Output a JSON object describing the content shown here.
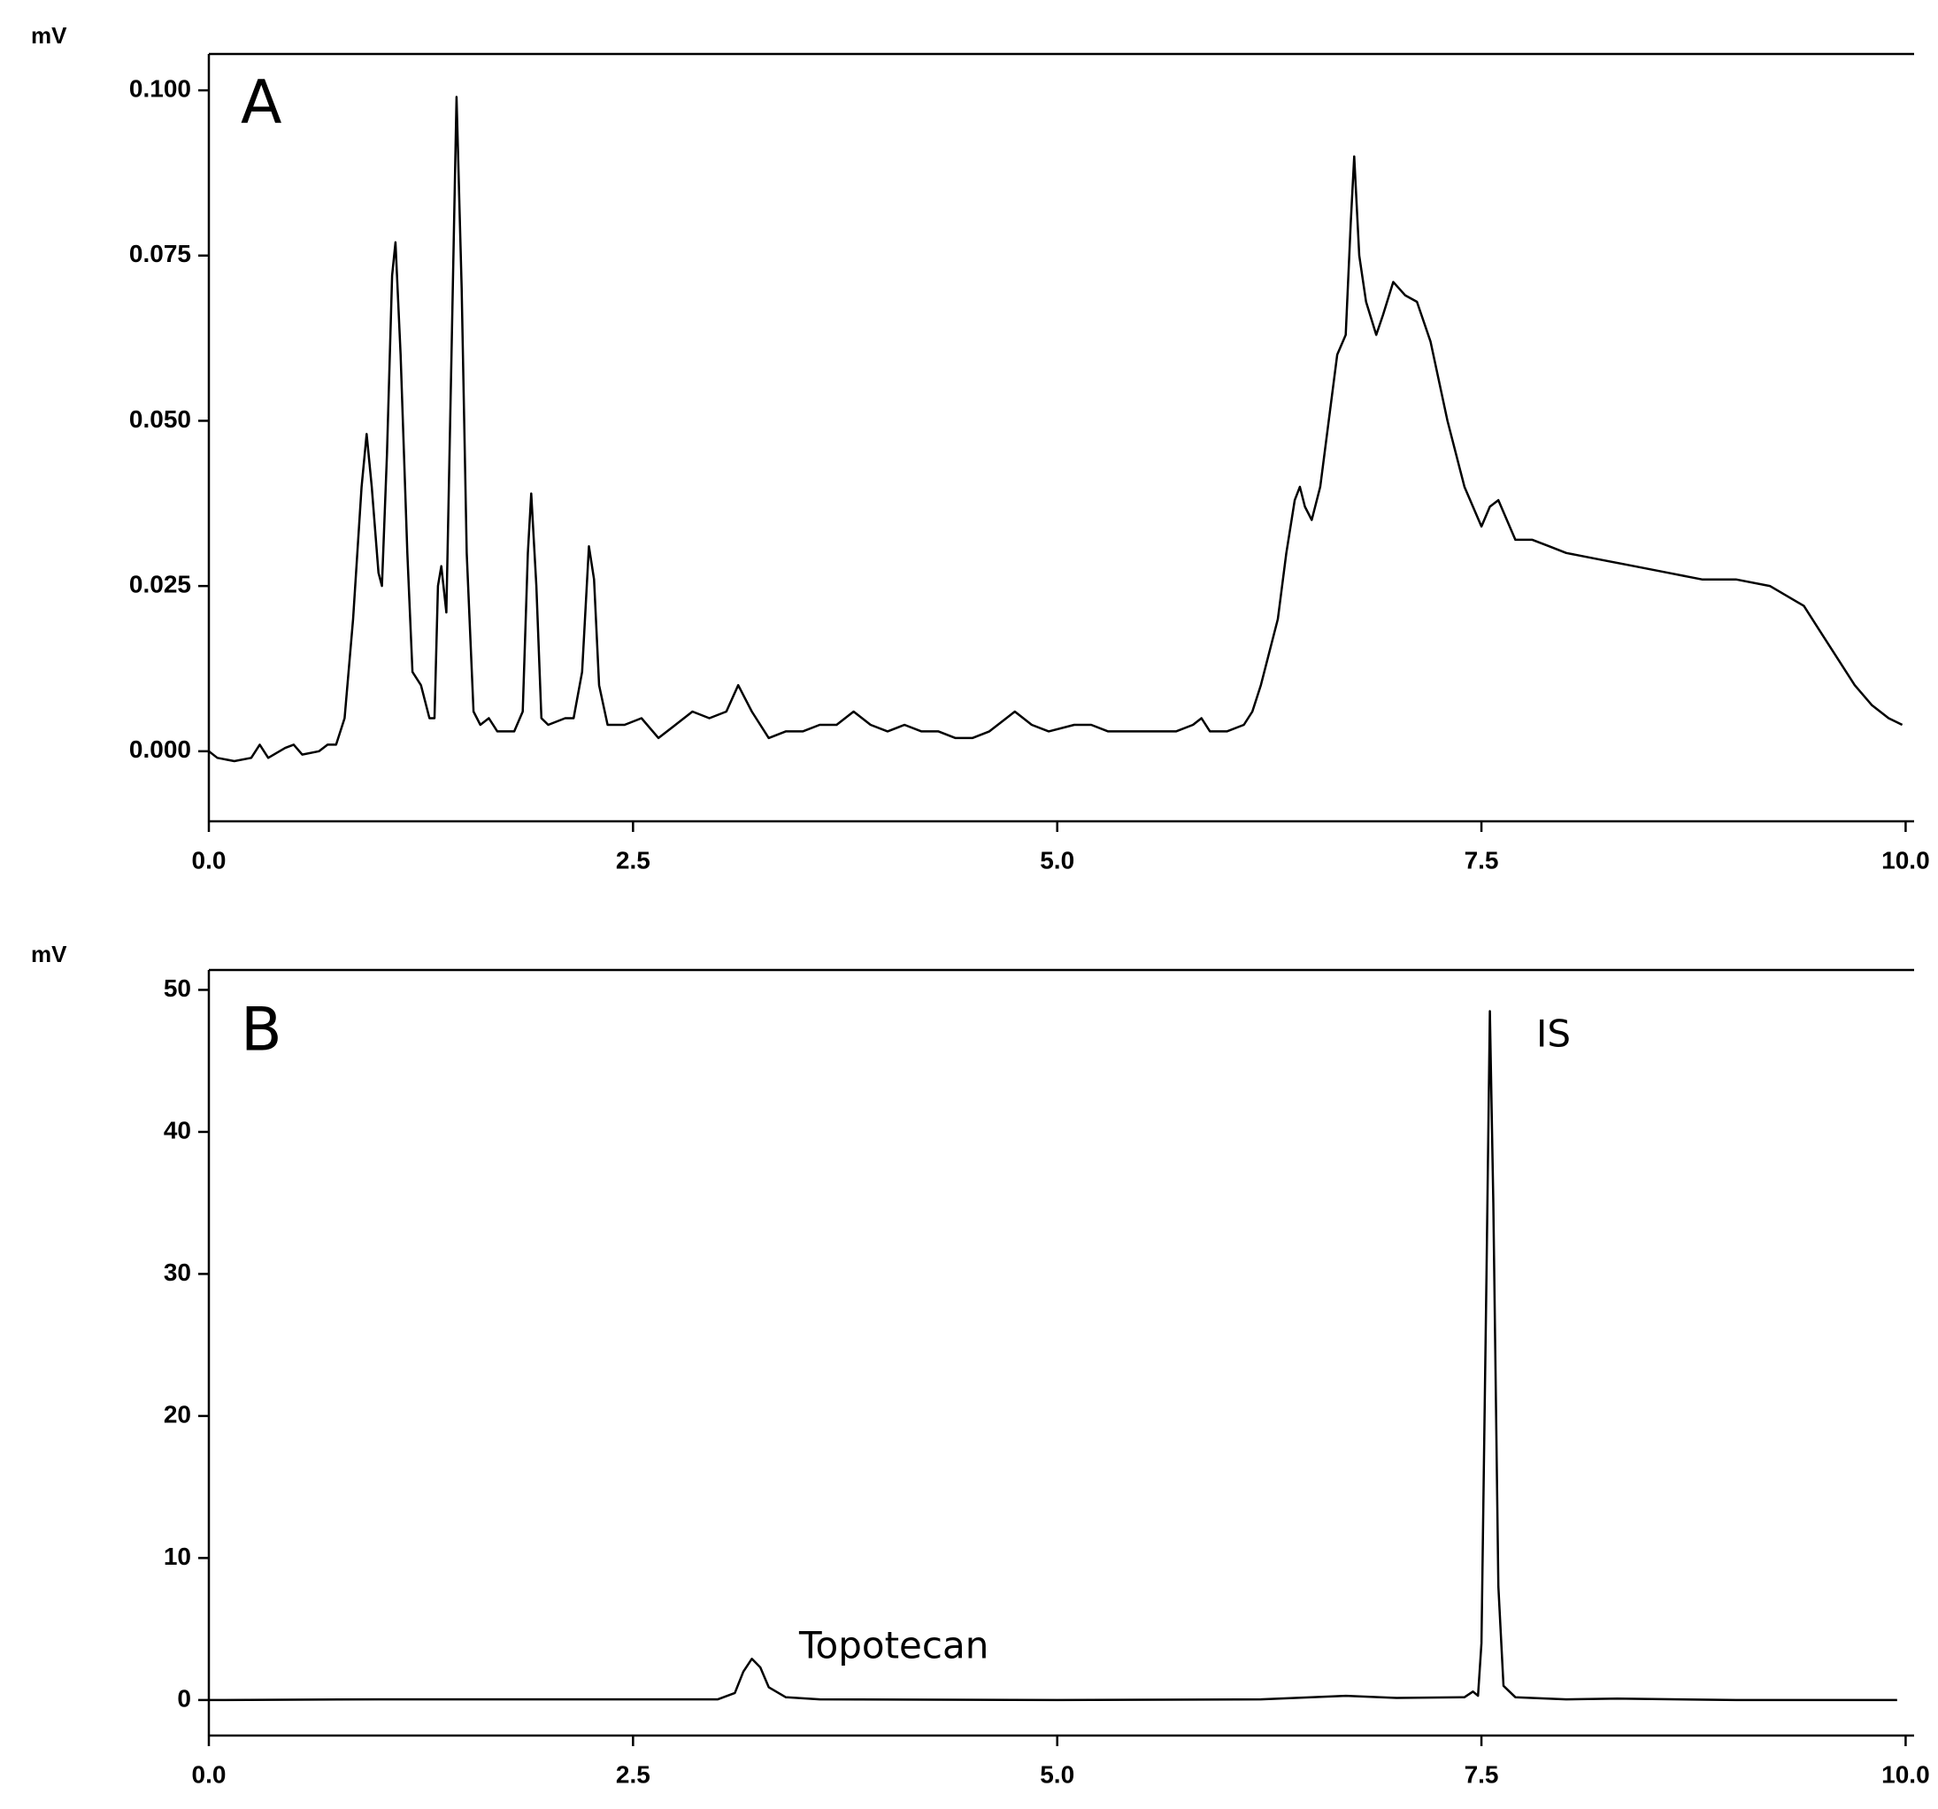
{
  "chart_data": [
    {
      "type": "line",
      "y_label": "mV",
      "panel_label": "A",
      "color": "#000000",
      "xlim": [
        0,
        10.05
      ],
      "ylim": [
        -0.0106,
        0.1055
      ],
      "xticks": [
        {
          "value": 0,
          "label": "0.0"
        },
        {
          "value": 2.5,
          "label": "2.5"
        },
        {
          "value": 5,
          "label": "5.0"
        },
        {
          "value": 7.5,
          "label": "7.5"
        },
        {
          "value": 10,
          "label": "10.0"
        }
      ],
      "yticks": [
        {
          "value": 0,
          "label": "0.000"
        },
        {
          "value": 0.025,
          "label": "0.025"
        },
        {
          "value": 0.05,
          "label": "0.050"
        },
        {
          "value": 0.075,
          "label": "0.075"
        },
        {
          "value": 0.1,
          "label": "0.100"
        }
      ],
      "x": [
        0.0,
        0.05,
        0.15,
        0.25,
        0.3,
        0.35,
        0.45,
        0.5,
        0.55,
        0.65,
        0.7,
        0.75,
        0.8,
        0.85,
        0.9,
        0.93,
        0.96,
        1.0,
        1.02,
        1.05,
        1.08,
        1.1,
        1.13,
        1.17,
        1.2,
        1.25,
        1.3,
        1.33,
        1.35,
        1.37,
        1.4,
        1.43,
        1.46,
        1.49,
        1.52,
        1.56,
        1.6,
        1.65,
        1.7,
        1.8,
        1.85,
        1.88,
        1.9,
        1.93,
        1.96,
        2.0,
        2.1,
        2.15,
        2.2,
        2.24,
        2.27,
        2.3,
        2.35,
        2.45,
        2.55,
        2.65,
        2.75,
        2.85,
        2.95,
        3.05,
        3.12,
        3.2,
        3.3,
        3.4,
        3.5,
        3.6,
        3.7,
        3.8,
        3.9,
        4.0,
        4.1,
        4.2,
        4.3,
        4.4,
        4.5,
        4.6,
        4.7,
        4.75,
        4.85,
        4.95,
        5.1,
        5.2,
        5.3,
        5.4,
        5.5,
        5.6,
        5.7,
        5.8,
        5.85,
        5.9,
        6.0,
        6.1,
        6.15,
        6.2,
        6.25,
        6.3,
        6.35,
        6.4,
        6.43,
        6.46,
        6.5,
        6.55,
        6.6,
        6.65,
        6.7,
        6.73,
        6.75,
        6.78,
        6.82,
        6.88,
        6.92,
        6.98,
        7.05,
        7.12,
        7.2,
        7.3,
        7.4,
        7.5,
        7.55,
        7.6,
        7.65,
        7.7,
        7.8,
        7.9,
        8.0,
        8.2,
        8.4,
        8.6,
        8.8,
        9.0,
        9.2,
        9.4,
        9.5,
        9.6,
        9.7,
        9.8,
        9.9,
        9.98
      ],
      "values": [
        0.0,
        -0.001,
        -0.0015,
        -0.001,
        0.001,
        -0.001,
        0.0005,
        0.001,
        -0.0005,
        0.0,
        0.001,
        0.001,
        0.005,
        0.02,
        0.04,
        0.048,
        0.04,
        0.027,
        0.025,
        0.045,
        0.072,
        0.077,
        0.06,
        0.03,
        0.012,
        0.01,
        0.005,
        0.005,
        0.025,
        0.028,
        0.021,
        0.06,
        0.099,
        0.07,
        0.03,
        0.006,
        0.004,
        0.005,
        0.003,
        0.003,
        0.006,
        0.03,
        0.039,
        0.025,
        0.005,
        0.004,
        0.005,
        0.005,
        0.012,
        0.031,
        0.026,
        0.01,
        0.004,
        0.004,
        0.005,
        0.002,
        0.004,
        0.006,
        0.005,
        0.006,
        0.01,
        0.006,
        0.002,
        0.003,
        0.003,
        0.004,
        0.004,
        0.006,
        0.004,
        0.003,
        0.004,
        0.003,
        0.003,
        0.002,
        0.002,
        0.003,
        0.005,
        0.006,
        0.004,
        0.003,
        0.004,
        0.004,
        0.003,
        0.003,
        0.003,
        0.003,
        0.003,
        0.004,
        0.005,
        0.003,
        0.003,
        0.004,
        0.006,
        0.01,
        0.015,
        0.02,
        0.03,
        0.038,
        0.04,
        0.037,
        0.035,
        0.04,
        0.05,
        0.06,
        0.063,
        0.08,
        0.09,
        0.075,
        0.068,
        0.063,
        0.066,
        0.071,
        0.069,
        0.068,
        0.062,
        0.05,
        0.04,
        0.034,
        0.037,
        0.038,
        0.035,
        0.032,
        0.032,
        0.031,
        0.03,
        0.029,
        0.028,
        0.027,
        0.026,
        0.026,
        0.025,
        0.022,
        0.018,
        0.014,
        0.01,
        0.007,
        0.005,
        0.004
      ]
    },
    {
      "type": "line",
      "y_label": "mV",
      "panel_label": "B",
      "color": "#000000",
      "annotations": [
        "Topotecan",
        "IS"
      ],
      "xlim": [
        0,
        10.05
      ],
      "ylim": [
        -2.5,
        51.4
      ],
      "xticks": [
        {
          "value": 0,
          "label": "0.0"
        },
        {
          "value": 2.5,
          "label": "2.5"
        },
        {
          "value": 5,
          "label": "5.0"
        },
        {
          "value": 7.5,
          "label": "7.5"
        },
        {
          "value": 10,
          "label": "10.0"
        }
      ],
      "yticks": [
        0,
        10,
        20,
        30,
        40,
        50
      ],
      "x": [
        0,
        1,
        2,
        3.0,
        3.1,
        3.15,
        3.2,
        3.25,
        3.3,
        3.4,
        3.6,
        5,
        6.2,
        6.7,
        7.0,
        7.4,
        7.45,
        7.48,
        7.5,
        7.53,
        7.55,
        7.57,
        7.6,
        7.63,
        7.7,
        8.0,
        8.3,
        9,
        9.95
      ],
      "values": [
        0,
        0.05,
        0.05,
        0.05,
        0.5,
        2.0,
        2.9,
        2.3,
        0.9,
        0.2,
        0.05,
        0,
        0.05,
        0.3,
        0.15,
        0.2,
        0.6,
        0.3,
        4,
        30,
        48.5,
        35,
        8,
        1,
        0.2,
        0.05,
        0.1,
        0,
        0
      ]
    }
  ]
}
